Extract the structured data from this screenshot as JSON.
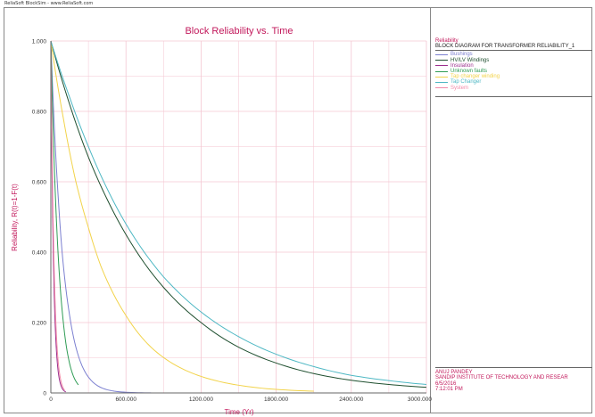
{
  "window": {
    "title": "ReliaSoft BlockSim - www.ReliaSoft.com"
  },
  "legend": {
    "header": "Reliability",
    "subtitle": "BLOCK DIAGRAM FOR TRANSFORMER RELIABILITY_1"
  },
  "footer": {
    "lines": [
      "ANUJ PANDEY",
      "SANDIP INSTITUTE OF TECHNOLOGY AND RESEAR",
      "6/5/2016",
      "7:12:01 PM"
    ]
  },
  "colors": {
    "grid": "#f4c6d2",
    "axis": "#666666",
    "label": "#c2185b"
  },
  "chart_data": {
    "type": "line",
    "title": "Block Reliability vs. Time",
    "xlabel": "Time (Yr)",
    "ylabel": "Reliability, R(t)=1-F(t)",
    "xlim": [
      0,
      3000
    ],
    "ylim": [
      0,
      1
    ],
    "xticks": [
      "0",
      "600.000",
      "1200.000",
      "1800.000",
      "2400.000",
      "3000.000"
    ],
    "yticks": [
      "0",
      "0.200",
      "0.400",
      "0.600",
      "0.800",
      "1.000"
    ],
    "grid": true,
    "legend_position": "right",
    "series": [
      {
        "name": "Bushings",
        "color": "#7b7fd0",
        "x": [
          0,
          30,
          60,
          90,
          150,
          200,
          300,
          450,
          600,
          800
        ],
        "y": [
          1.0,
          0.74,
          0.55,
          0.4,
          0.22,
          0.13,
          0.045,
          0.009,
          0.002,
          0.0002
        ]
      },
      {
        "name": "HV/LV Windings",
        "color": "#1f4f2f",
        "x": [
          0,
          150,
          300,
          450,
          600,
          900,
          1200,
          1500,
          1800,
          2100,
          2400,
          2700,
          3000
        ],
        "y": [
          1.0,
          0.82,
          0.67,
          0.55,
          0.45,
          0.3,
          0.2,
          0.13,
          0.085,
          0.055,
          0.036,
          0.024,
          0.016
        ]
      },
      {
        "name": "Insulation",
        "color": "#9c2f8e",
        "x": [
          0,
          10,
          20,
          40,
          60,
          80,
          100,
          120
        ],
        "y": [
          1.0,
          0.62,
          0.39,
          0.15,
          0.057,
          0.022,
          0.008,
          0.003
        ]
      },
      {
        "name": "Unknown faults",
        "color": "#2f9c55",
        "x": [
          0,
          15,
          30,
          50,
          75,
          100,
          140,
          180,
          220
        ],
        "y": [
          1.0,
          0.79,
          0.62,
          0.45,
          0.3,
          0.2,
          0.1,
          0.048,
          0.023
        ]
      },
      {
        "name": "Tap changer winding",
        "color": "#f2d34a",
        "x": [
          0,
          100,
          200,
          300,
          400,
          600,
          800,
          1000,
          1200,
          1500,
          1800,
          2100
        ],
        "y": [
          1.0,
          0.78,
          0.6,
          0.47,
          0.36,
          0.22,
          0.13,
          0.078,
          0.047,
          0.022,
          0.01,
          0.005
        ]
      },
      {
        "name": "Tap Changer",
        "color": "#4fb8c4",
        "x": [
          0,
          150,
          300,
          450,
          600,
          900,
          1200,
          1500,
          1800,
          2100,
          2400,
          2700,
          3000
        ],
        "y": [
          1.0,
          0.84,
          0.7,
          0.58,
          0.48,
          0.33,
          0.23,
          0.16,
          0.11,
          0.075,
          0.05,
          0.035,
          0.024
        ]
      },
      {
        "name": "System",
        "color": "#f28aa8",
        "x": [
          0,
          5,
          10,
          20,
          35,
          50,
          70,
          90,
          110
        ],
        "y": [
          1.0,
          0.82,
          0.68,
          0.46,
          0.25,
          0.13,
          0.055,
          0.022,
          0.008
        ]
      }
    ]
  }
}
